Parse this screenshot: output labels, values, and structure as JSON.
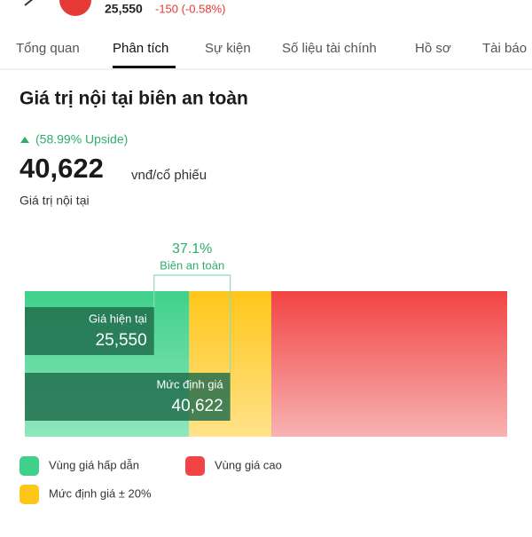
{
  "header": {
    "price": "25,550",
    "change": "-150 (-0.58%)"
  },
  "tabs": [
    "Tổng quan",
    "Phân tích",
    "Sự kiện",
    "Số liệu tài chính",
    "Hồ sơ",
    "Tài báo"
  ],
  "card": {
    "title": "Giá trị nội tại biên an toàn",
    "upside": "(58.99% Upside)",
    "intrinsic_value": "40,622",
    "unit": "vnđ/cổ phiếu",
    "intrinsic_label": "Giá trị nội tại",
    "margin": {
      "value": "37.1%",
      "label": "Biên an toàn"
    },
    "bars": [
      {
        "label": "Giá hiện tại",
        "value": 25550,
        "value_label": "25,550"
      },
      {
        "label": "Mức định giá",
        "value": 40622,
        "value_label": "40,622"
      }
    ],
    "band": 20,
    "legend": [
      "Vùng giá hấp dẫn",
      "Vùng giá cao",
      "Mức định giá ± 20%"
    ]
  }
}
